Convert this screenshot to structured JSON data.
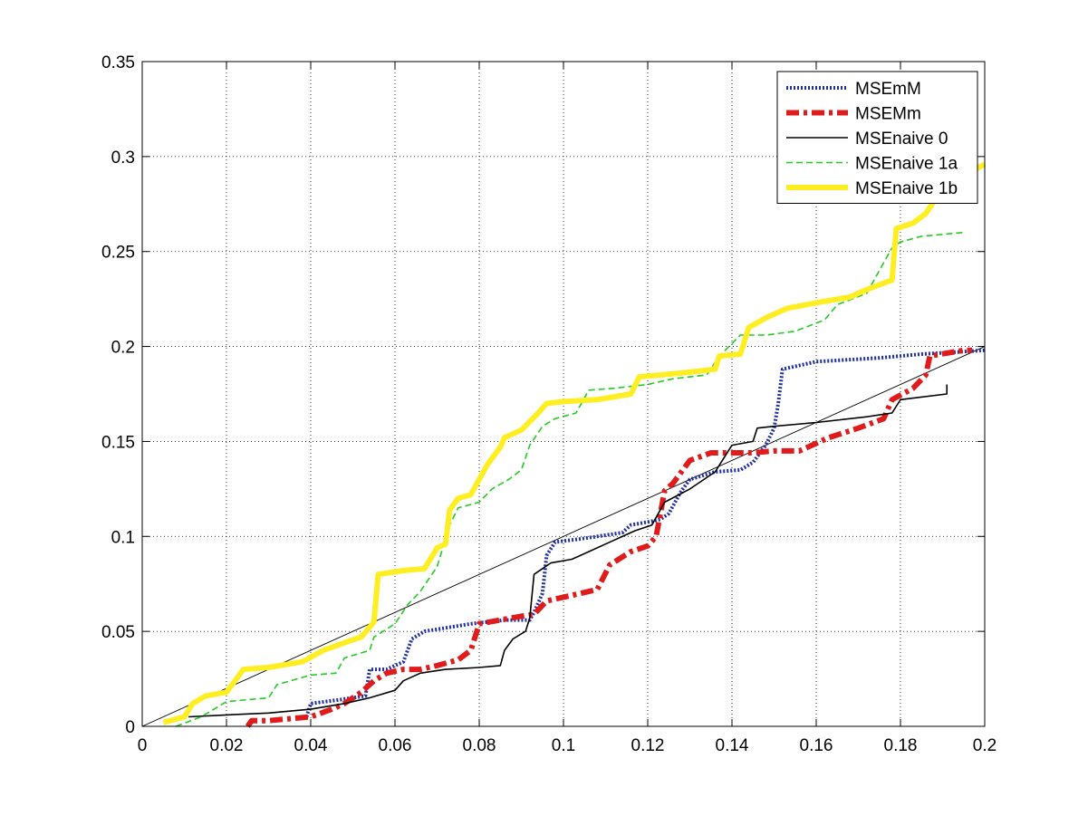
{
  "chart_data": {
    "type": "line",
    "title": "",
    "xlabel": "",
    "ylabel": "",
    "xlim": [
      0,
      0.2
    ],
    "ylim": [
      0,
      0.35
    ],
    "x_ticks": [
      0,
      0.02,
      0.04,
      0.06,
      0.08,
      0.1,
      0.12,
      0.14,
      0.16,
      0.18,
      0.2
    ],
    "x_tick_labels": [
      "0",
      "0.02",
      "0.04",
      "0.06",
      "0.08",
      "0.1",
      "0.12",
      "0.14",
      "0.16",
      "0.18",
      "0.2"
    ],
    "y_ticks": [
      0,
      0.05,
      0.1,
      0.15,
      0.2,
      0.25,
      0.3,
      0.35
    ],
    "y_tick_labels": [
      "0",
      "0.05",
      "0.1",
      "0.15",
      "0.2",
      "0.25",
      "0.3",
      "0.35"
    ],
    "grid": true,
    "legend_position": "top-right",
    "reference_line": {
      "x": [
        0,
        0.2
      ],
      "y": [
        0,
        0.2
      ],
      "color": "#000000"
    },
    "series": [
      {
        "name": "MSEmM",
        "color": "#1f2fa8",
        "style": "dotted",
        "points": [
          [
            0.039,
            0.005
          ],
          [
            0.04,
            0.012
          ],
          [
            0.047,
            0.014
          ],
          [
            0.053,
            0.016
          ],
          [
            0.054,
            0.03
          ],
          [
            0.058,
            0.03
          ],
          [
            0.062,
            0.034
          ],
          [
            0.064,
            0.046
          ],
          [
            0.067,
            0.05
          ],
          [
            0.078,
            0.054
          ],
          [
            0.086,
            0.056
          ],
          [
            0.092,
            0.056
          ],
          [
            0.093,
            0.06
          ],
          [
            0.095,
            0.07
          ],
          [
            0.096,
            0.09
          ],
          [
            0.098,
            0.097
          ],
          [
            0.105,
            0.099
          ],
          [
            0.114,
            0.102
          ],
          [
            0.116,
            0.106
          ],
          [
            0.121,
            0.108
          ],
          [
            0.123,
            0.109
          ],
          [
            0.125,
            0.112
          ],
          [
            0.127,
            0.12
          ],
          [
            0.128,
            0.124
          ],
          [
            0.13,
            0.13
          ],
          [
            0.136,
            0.134
          ],
          [
            0.142,
            0.135
          ],
          [
            0.145,
            0.139
          ],
          [
            0.148,
            0.148
          ],
          [
            0.15,
            0.157
          ],
          [
            0.151,
            0.17
          ],
          [
            0.152,
            0.188
          ],
          [
            0.16,
            0.192
          ],
          [
            0.175,
            0.194
          ],
          [
            0.185,
            0.196
          ],
          [
            0.2,
            0.198
          ]
        ]
      },
      {
        "name": "MSEMm",
        "color": "#e01b1b",
        "style": "dashdot",
        "points": [
          [
            0.025,
            0.0
          ],
          [
            0.026,
            0.003
          ],
          [
            0.03,
            0.003
          ],
          [
            0.04,
            0.005
          ],
          [
            0.045,
            0.009
          ],
          [
            0.048,
            0.012
          ],
          [
            0.052,
            0.018
          ],
          [
            0.055,
            0.024
          ],
          [
            0.058,
            0.028
          ],
          [
            0.062,
            0.03
          ],
          [
            0.066,
            0.03
          ],
          [
            0.07,
            0.032
          ],
          [
            0.075,
            0.035
          ],
          [
            0.078,
            0.04
          ],
          [
            0.08,
            0.054
          ],
          [
            0.085,
            0.056
          ],
          [
            0.09,
            0.058
          ],
          [
            0.093,
            0.059
          ],
          [
            0.096,
            0.066
          ],
          [
            0.1,
            0.068
          ],
          [
            0.108,
            0.072
          ],
          [
            0.111,
            0.085
          ],
          [
            0.116,
            0.092
          ],
          [
            0.12,
            0.095
          ],
          [
            0.122,
            0.1
          ],
          [
            0.124,
            0.124
          ],
          [
            0.126,
            0.128
          ],
          [
            0.13,
            0.14
          ],
          [
            0.135,
            0.144
          ],
          [
            0.14,
            0.144
          ],
          [
            0.145,
            0.144
          ],
          [
            0.15,
            0.145
          ],
          [
            0.156,
            0.145
          ],
          [
            0.163,
            0.152
          ],
          [
            0.17,
            0.157
          ],
          [
            0.176,
            0.162
          ],
          [
            0.178,
            0.172
          ],
          [
            0.183,
            0.178
          ],
          [
            0.186,
            0.185
          ],
          [
            0.187,
            0.195
          ],
          [
            0.195,
            0.198
          ],
          [
            0.197,
            0.198
          ]
        ]
      },
      {
        "name": "MSEnaive 0",
        "color": "#000000",
        "style": "solid",
        "points": [
          [
            0.011,
            0.005
          ],
          [
            0.02,
            0.006
          ],
          [
            0.03,
            0.007
          ],
          [
            0.04,
            0.009
          ],
          [
            0.048,
            0.012
          ],
          [
            0.054,
            0.015
          ],
          [
            0.06,
            0.019
          ],
          [
            0.062,
            0.024
          ],
          [
            0.066,
            0.028
          ],
          [
            0.072,
            0.03
          ],
          [
            0.08,
            0.031
          ],
          [
            0.085,
            0.032
          ],
          [
            0.086,
            0.04
          ],
          [
            0.088,
            0.046
          ],
          [
            0.091,
            0.05
          ],
          [
            0.092,
            0.057
          ],
          [
            0.093,
            0.08
          ],
          [
            0.097,
            0.086
          ],
          [
            0.102,
            0.088
          ],
          [
            0.106,
            0.092
          ],
          [
            0.11,
            0.096
          ],
          [
            0.117,
            0.103
          ],
          [
            0.121,
            0.106
          ],
          [
            0.124,
            0.118
          ],
          [
            0.13,
            0.125
          ],
          [
            0.136,
            0.134
          ],
          [
            0.14,
            0.148
          ],
          [
            0.145,
            0.15
          ],
          [
            0.146,
            0.157
          ],
          [
            0.15,
            0.158
          ],
          [
            0.16,
            0.16
          ],
          [
            0.172,
            0.163
          ],
          [
            0.178,
            0.165
          ],
          [
            0.18,
            0.172
          ],
          [
            0.191,
            0.175
          ],
          [
            0.191,
            0.18
          ]
        ]
      },
      {
        "name": "MSEnaive 1a",
        "color": "#22cc22",
        "style": "dashed",
        "points": [
          [
            0.008,
            0.0
          ],
          [
            0.014,
            0.005
          ],
          [
            0.02,
            0.013
          ],
          [
            0.03,
            0.015
          ],
          [
            0.032,
            0.022
          ],
          [
            0.04,
            0.027
          ],
          [
            0.046,
            0.028
          ],
          [
            0.048,
            0.036
          ],
          [
            0.054,
            0.04
          ],
          [
            0.055,
            0.047
          ],
          [
            0.06,
            0.054
          ],
          [
            0.063,
            0.064
          ],
          [
            0.066,
            0.071
          ],
          [
            0.07,
            0.084
          ],
          [
            0.073,
            0.106
          ],
          [
            0.075,
            0.115
          ],
          [
            0.08,
            0.118
          ],
          [
            0.083,
            0.125
          ],
          [
            0.087,
            0.13
          ],
          [
            0.09,
            0.135
          ],
          [
            0.092,
            0.148
          ],
          [
            0.095,
            0.158
          ],
          [
            0.098,
            0.162
          ],
          [
            0.103,
            0.165
          ],
          [
            0.106,
            0.177
          ],
          [
            0.112,
            0.178
          ],
          [
            0.12,
            0.18
          ],
          [
            0.126,
            0.183
          ],
          [
            0.134,
            0.185
          ],
          [
            0.137,
            0.195
          ],
          [
            0.142,
            0.206
          ],
          [
            0.148,
            0.206
          ],
          [
            0.155,
            0.208
          ],
          [
            0.162,
            0.214
          ],
          [
            0.165,
            0.222
          ],
          [
            0.172,
            0.228
          ],
          [
            0.175,
            0.24
          ],
          [
            0.178,
            0.252
          ],
          [
            0.18,
            0.255
          ],
          [
            0.185,
            0.258
          ],
          [
            0.195,
            0.26
          ]
        ]
      },
      {
        "name": "MSEnaive 1b",
        "color": "#ffee22",
        "style": "thick",
        "points": [
          [
            0.005,
            0.002
          ],
          [
            0.01,
            0.005
          ],
          [
            0.012,
            0.012
          ],
          [
            0.015,
            0.016
          ],
          [
            0.02,
            0.018
          ],
          [
            0.024,
            0.03
          ],
          [
            0.03,
            0.031
          ],
          [
            0.038,
            0.034
          ],
          [
            0.043,
            0.04
          ],
          [
            0.048,
            0.044
          ],
          [
            0.052,
            0.047
          ],
          [
            0.055,
            0.055
          ],
          [
            0.056,
            0.08
          ],
          [
            0.062,
            0.082
          ],
          [
            0.067,
            0.083
          ],
          [
            0.07,
            0.094
          ],
          [
            0.072,
            0.096
          ],
          [
            0.073,
            0.114
          ],
          [
            0.075,
            0.12
          ],
          [
            0.078,
            0.122
          ],
          [
            0.082,
            0.138
          ],
          [
            0.085,
            0.147
          ],
          [
            0.086,
            0.152
          ],
          [
            0.09,
            0.156
          ],
          [
            0.094,
            0.165
          ],
          [
            0.096,
            0.17
          ],
          [
            0.1,
            0.171
          ],
          [
            0.108,
            0.172
          ],
          [
            0.116,
            0.175
          ],
          [
            0.118,
            0.184
          ],
          [
            0.128,
            0.186
          ],
          [
            0.136,
            0.188
          ],
          [
            0.137,
            0.195
          ],
          [
            0.142,
            0.196
          ],
          [
            0.144,
            0.21
          ],
          [
            0.148,
            0.215
          ],
          [
            0.153,
            0.22
          ],
          [
            0.16,
            0.223
          ],
          [
            0.168,
            0.226
          ],
          [
            0.172,
            0.23
          ],
          [
            0.178,
            0.235
          ],
          [
            0.179,
            0.262
          ],
          [
            0.183,
            0.265
          ],
          [
            0.186,
            0.27
          ],
          [
            0.189,
            0.28
          ],
          [
            0.192,
            0.286
          ],
          [
            0.2,
            0.296
          ]
        ]
      }
    ]
  }
}
